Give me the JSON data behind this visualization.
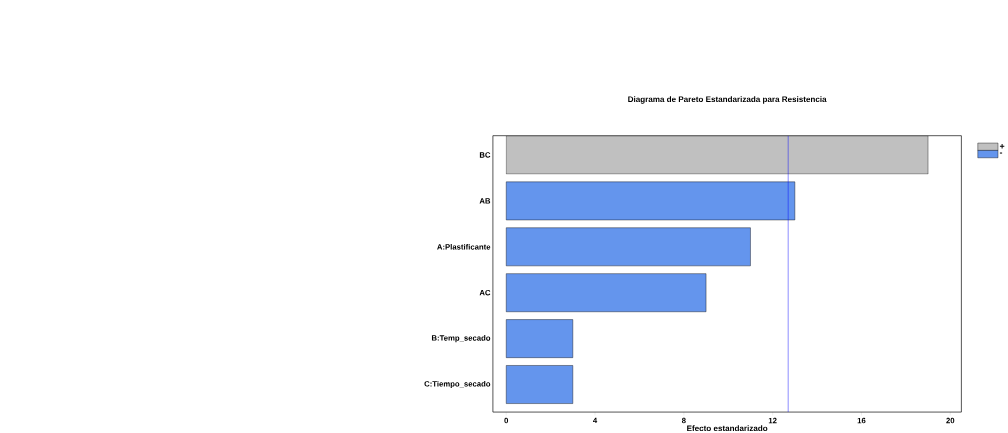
{
  "chart_data": {
    "type": "bar",
    "orientation": "horizontal",
    "title": "Diagrama de Pareto Estandarizada para Resistencia",
    "xlabel": "Efecto estandarizado",
    "categories": [
      "BC",
      "AB",
      "A:Plastificante",
      "AC",
      "B:Temp_secado",
      "C:Tiempo_secado"
    ],
    "series": [
      {
        "name": "+",
        "color": "#c0c0c0",
        "values": [
          19,
          null,
          null,
          null,
          null,
          null
        ]
      },
      {
        "name": "-",
        "color": "#6495ed",
        "values": [
          null,
          13,
          11,
          9,
          3,
          3
        ]
      }
    ],
    "xlim": [
      -0.6,
      20.5
    ],
    "xticks": [
      0,
      4,
      8,
      12,
      16,
      20
    ],
    "ref_lines": [
      {
        "axis": "x",
        "value": 12.7,
        "color": "#0000ff"
      }
    ],
    "legend": "top right"
  }
}
